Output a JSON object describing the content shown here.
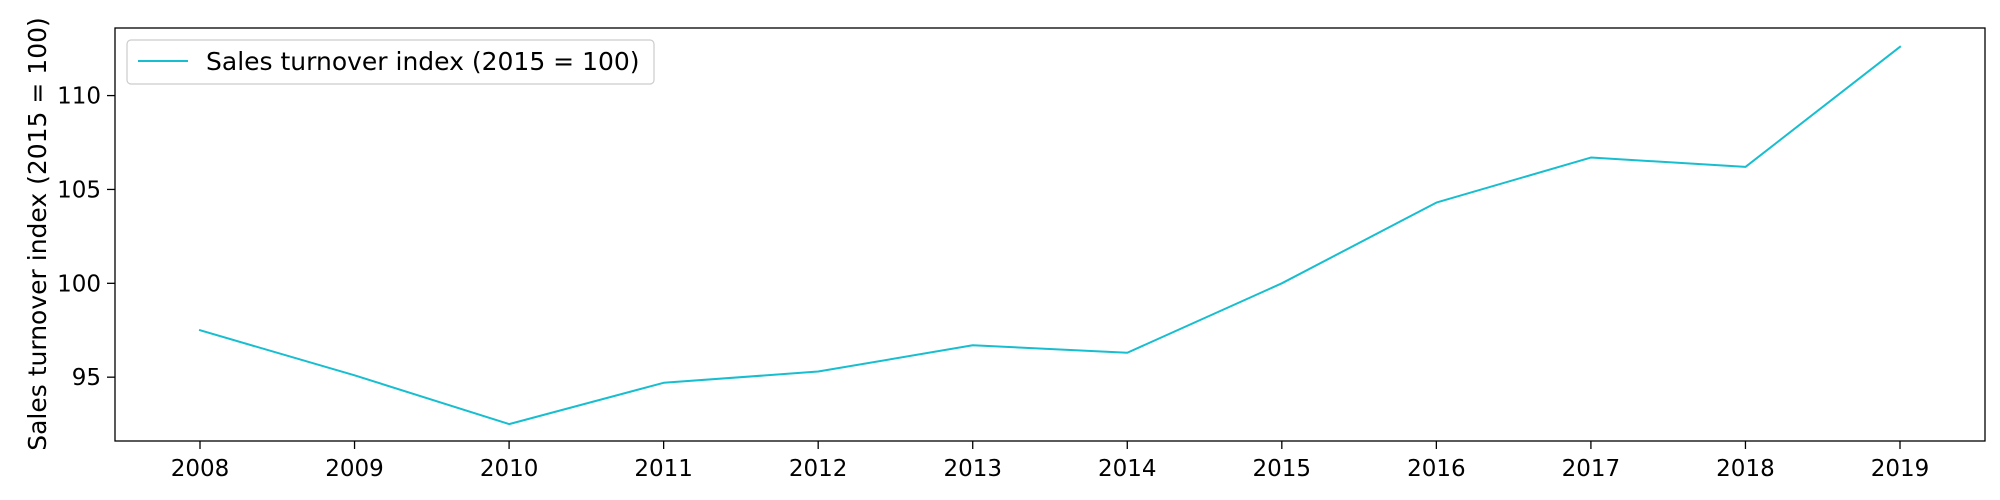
{
  "chart_data": {
    "type": "line",
    "x": [
      2008,
      2009,
      2010,
      2011,
      2012,
      2013,
      2014,
      2015,
      2016,
      2017,
      2018,
      2019
    ],
    "series": [
      {
        "name": "Sales turnover index (2015 = 100)",
        "color": "#17becf",
        "values": [
          97.5,
          95.1,
          92.5,
          94.7,
          95.3,
          96.7,
          96.3,
          100.0,
          104.3,
          106.7,
          106.2,
          112.6
        ]
      }
    ],
    "title": "",
    "xlabel": "",
    "ylabel": "Sales turnover index (2015 = 100)",
    "xlim": [
      2007.45,
      2019.55
    ],
    "ylim": [
      91.6,
      113.6
    ],
    "yticks": [
      95,
      100,
      105,
      110
    ],
    "grid": false,
    "legend": "upper-left"
  }
}
